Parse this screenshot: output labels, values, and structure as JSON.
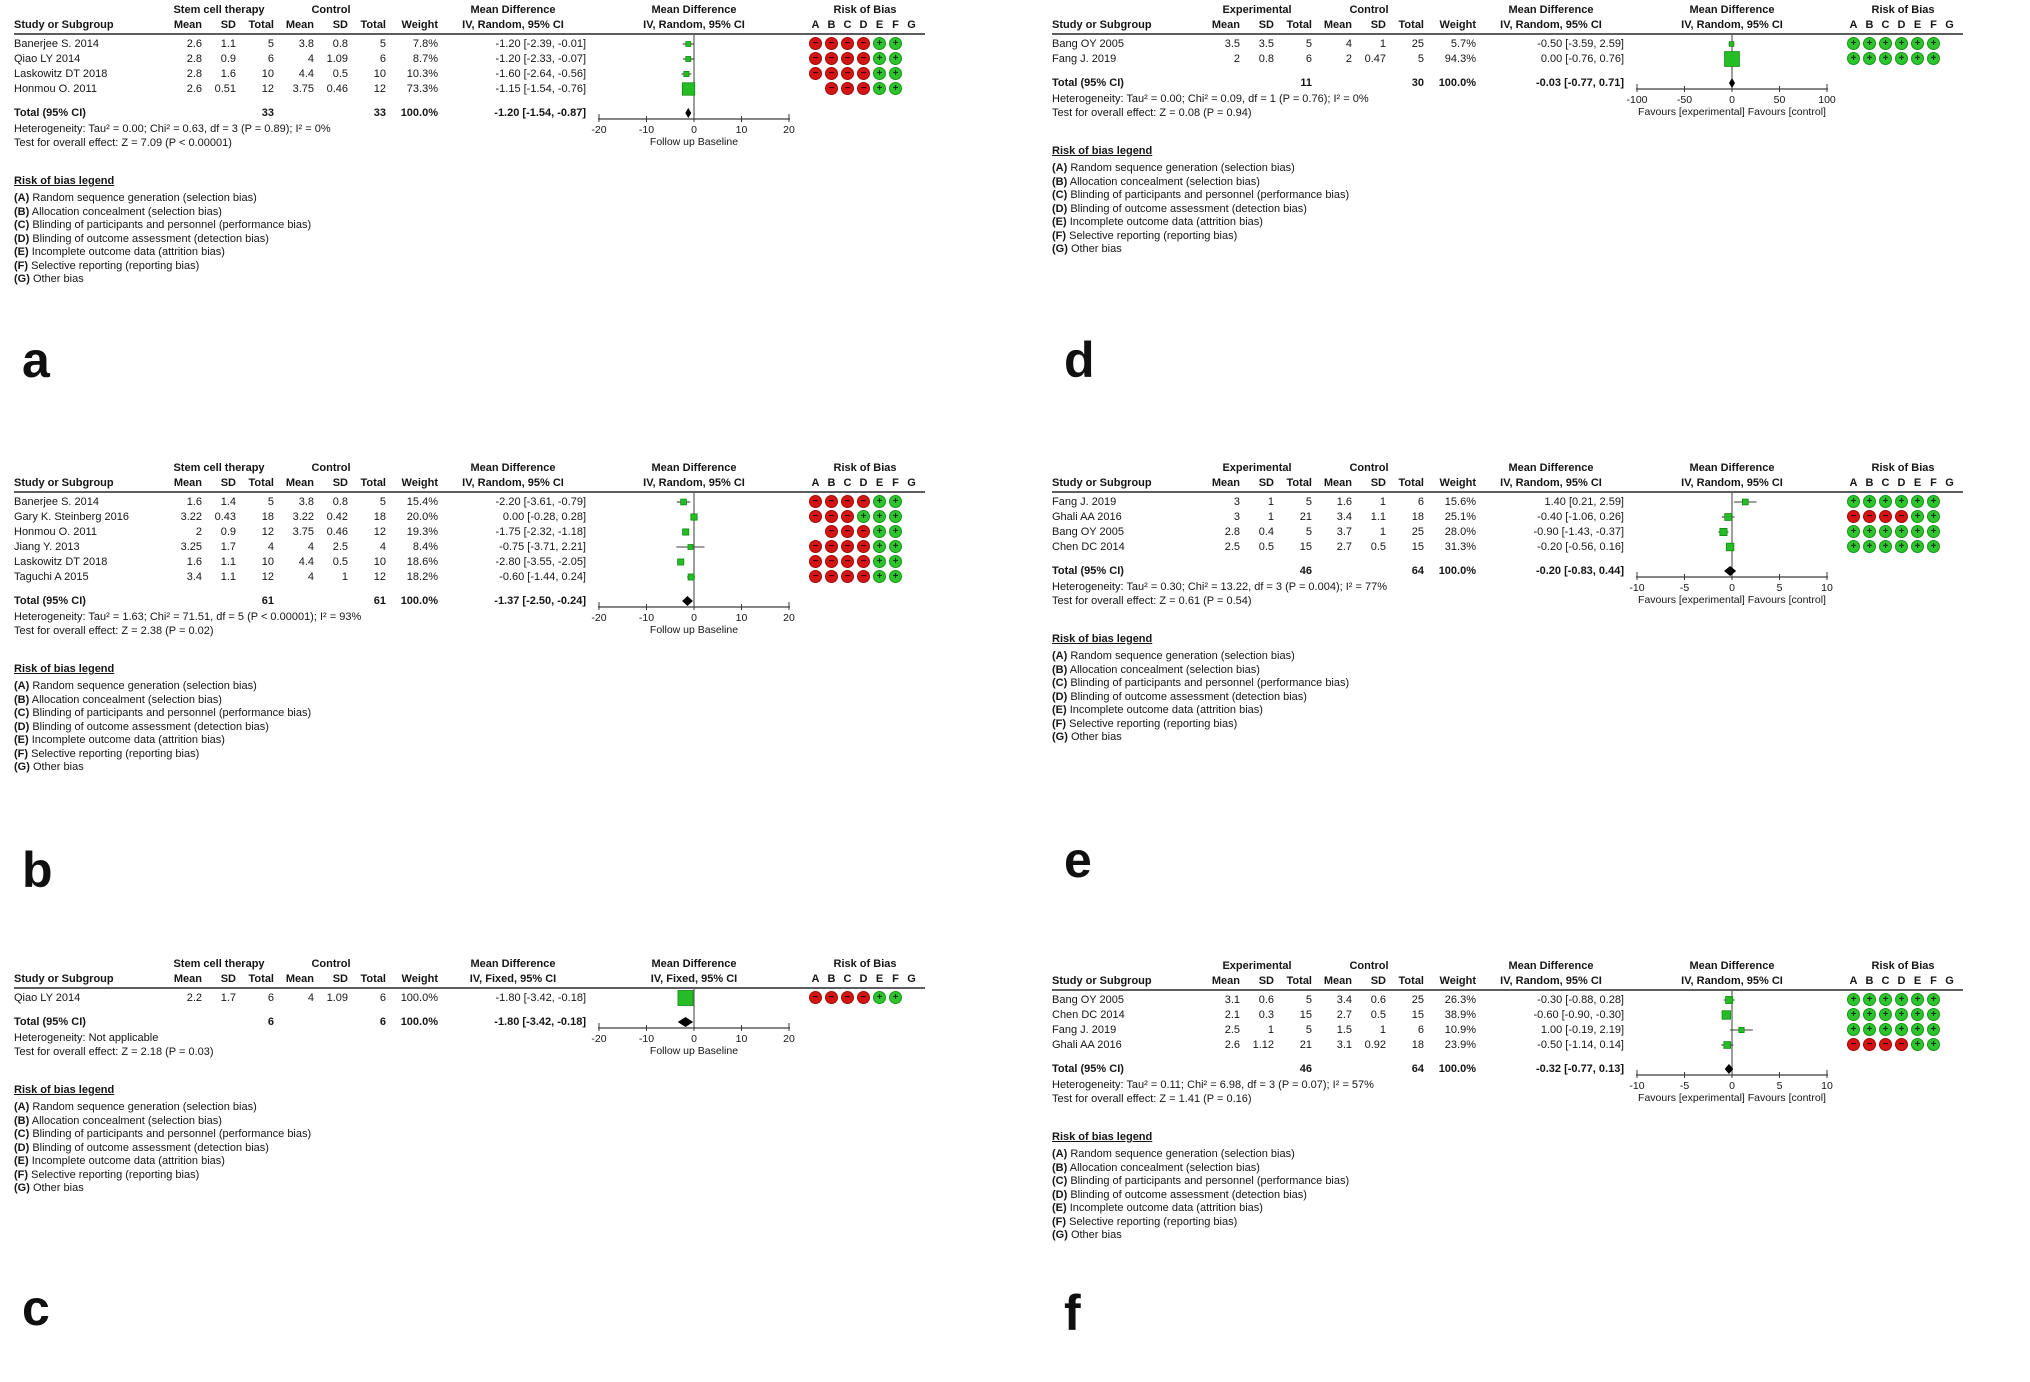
{
  "figure": {
    "rob_title": "Risk of Bias",
    "rob_columns": [
      "A",
      "B",
      "C",
      "D",
      "E",
      "F",
      "G"
    ],
    "rob_legend_title": "Risk of bias legend",
    "rob_legend": [
      {
        "key": "(A)",
        "text": "Random sequence generation (selection bias)"
      },
      {
        "key": "(B)",
        "text": "Allocation concealment (selection bias)"
      },
      {
        "key": "(C)",
        "text": "Blinding of participants and personnel (performance bias)"
      },
      {
        "key": "(D)",
        "text": "Blinding of outcome assessment (detection bias)"
      },
      {
        "key": "(E)",
        "text": "Incomplete outcome data (attrition bias)"
      },
      {
        "key": "(F)",
        "text": "Selective reporting (reporting bias)"
      },
      {
        "key": "(G)",
        "text": "Other bias"
      }
    ],
    "colors": {
      "risk_low_green": "#2ec42e",
      "risk_high_red": "#d51414",
      "marker_green": "#25bd25",
      "diamond_black": "#000000",
      "line_gray": "#3c3c3c"
    }
  },
  "chart_data": {
    "type": "forest",
    "panels": [
      {
        "label": "a",
        "group1": "Stem cell therapy",
        "group2": "Control",
        "effect_title": "Mean Difference",
        "effect_sub": "IV, Random, 95% CI",
        "columns": {
          "study": "Study or Subgroup",
          "mean": "Mean",
          "sd": "SD",
          "total": "Total",
          "weight": "Weight"
        },
        "rows": [
          {
            "study": "Banerjee S. 2014",
            "mean1": "2.6",
            "sd1": "1.1",
            "n1": "5",
            "mean2": "3.8",
            "sd2": "0.8",
            "n2": "5",
            "weight": "7.8%",
            "weight_value": 7.8,
            "ci_text": "-1.20 [-2.39, -0.01]",
            "est": -1.2,
            "lo": -2.39,
            "hi": -0.01,
            "rob": [
              "-",
              "-",
              "-",
              "-",
              "+",
              "+",
              ""
            ]
          },
          {
            "study": "Qiao LY 2014",
            "mean1": "2.8",
            "sd1": "0.9",
            "n1": "6",
            "mean2": "4",
            "sd2": "1.09",
            "n2": "6",
            "weight": "8.7%",
            "weight_value": 8.7,
            "ci_text": "-1.20 [-2.33, -0.07]",
            "est": -1.2,
            "lo": -2.33,
            "hi": -0.07,
            "rob": [
              "-",
              "-",
              "-",
              "-",
              "+",
              "+",
              ""
            ]
          },
          {
            "study": "Laskowitz DT 2018",
            "mean1": "2.8",
            "sd1": "1.6",
            "n1": "10",
            "mean2": "4.4",
            "sd2": "0.5",
            "n2": "10",
            "weight": "10.3%",
            "weight_value": 10.3,
            "ci_text": "-1.60 [-2.64, -0.56]",
            "est": -1.6,
            "lo": -2.64,
            "hi": -0.56,
            "rob": [
              "-",
              "-",
              "-",
              "-",
              "+",
              "+",
              ""
            ]
          },
          {
            "study": "Honmou O. 2011",
            "mean1": "2.6",
            "sd1": "0.51",
            "n1": "12",
            "mean2": "3.75",
            "sd2": "0.46",
            "n2": "12",
            "weight": "73.3%",
            "weight_value": 73.3,
            "ci_text": "-1.15 [-1.54, -0.76]",
            "est": -1.15,
            "lo": -1.54,
            "hi": -0.76,
            "rob": [
              "",
              "-",
              "-",
              "-",
              "+",
              "+",
              ""
            ]
          }
        ],
        "total": {
          "label": "Total (95% CI)",
          "n1": "33",
          "n2": "33",
          "weight": "100.0%",
          "ci_text": "-1.20 [-1.54, -0.87]",
          "est": -1.2,
          "lo": -1.54,
          "hi": -0.87
        },
        "heterogeneity": "Heterogeneity: Tau² = 0.00; Chi² = 0.63, df = 3 (P = 0.89); I² = 0%",
        "overall_test": "Test for overall effect: Z = 7.09 (P < 0.00001)",
        "axis": {
          "min": -20,
          "max": 20,
          "ticks": [
            -20,
            -10,
            0,
            10,
            20
          ],
          "footer": "Follow up  Baseline"
        }
      },
      {
        "label": "b",
        "group1": "Stem cell therapy",
        "group2": "Control",
        "effect_title": "Mean Difference",
        "effect_sub": "IV, Random, 95% CI",
        "columns": {
          "study": "Study or Subgroup",
          "mean": "Mean",
          "sd": "SD",
          "total": "Total",
          "weight": "Weight"
        },
        "rows": [
          {
            "study": "Banerjee S. 2014",
            "mean1": "1.6",
            "sd1": "1.4",
            "n1": "5",
            "mean2": "3.8",
            "sd2": "0.8",
            "n2": "5",
            "weight": "15.4%",
            "weight_value": 15.4,
            "ci_text": "-2.20 [-3.61, -0.79]",
            "est": -2.2,
            "lo": -3.61,
            "hi": -0.79,
            "rob": [
              "-",
              "-",
              "-",
              "-",
              "+",
              "+",
              ""
            ]
          },
          {
            "study": "Gary K. Steinberg 2016",
            "mean1": "3.22",
            "sd1": "0.43",
            "n1": "18",
            "mean2": "3.22",
            "sd2": "0.42",
            "n2": "18",
            "weight": "20.0%",
            "weight_value": 20.0,
            "ci_text": "0.00 [-0.28, 0.28]",
            "est": 0.0,
            "lo": -0.28,
            "hi": 0.28,
            "rob": [
              "-",
              "-",
              "-",
              "+",
              "+",
              "+",
              ""
            ]
          },
          {
            "study": "Honmou O. 2011",
            "mean1": "2",
            "sd1": "0.9",
            "n1": "12",
            "mean2": "3.75",
            "sd2": "0.46",
            "n2": "12",
            "weight": "19.3%",
            "weight_value": 19.3,
            "ci_text": "-1.75 [-2.32, -1.18]",
            "est": -1.75,
            "lo": -2.32,
            "hi": -1.18,
            "rob": [
              "",
              "-",
              "-",
              "-",
              "+",
              "+",
              ""
            ]
          },
          {
            "study": "Jiang Y. 2013",
            "mean1": "3.25",
            "sd1": "1.7",
            "n1": "4",
            "mean2": "4",
            "sd2": "2.5",
            "n2": "4",
            "weight": "8.4%",
            "weight_value": 8.4,
            "ci_text": "-0.75 [-3.71, 2.21]",
            "est": -0.75,
            "lo": -3.71,
            "hi": 2.21,
            "rob": [
              "-",
              "-",
              "-",
              "-",
              "+",
              "+",
              ""
            ]
          },
          {
            "study": "Laskowitz DT 2018",
            "mean1": "1.6",
            "sd1": "1.1",
            "n1": "10",
            "mean2": "4.4",
            "sd2": "0.5",
            "n2": "10",
            "weight": "18.6%",
            "weight_value": 18.6,
            "ci_text": "-2.80 [-3.55, -2.05]",
            "est": -2.8,
            "lo": -3.55,
            "hi": -2.05,
            "rob": [
              "-",
              "-",
              "-",
              "-",
              "+",
              "+",
              ""
            ]
          },
          {
            "study": "Taguchi A 2015",
            "mean1": "3.4",
            "sd1": "1.1",
            "n1": "12",
            "mean2": "4",
            "sd2": "1",
            "n2": "12",
            "weight": "18.2%",
            "weight_value": 18.2,
            "ci_text": "-0.60 [-1.44, 0.24]",
            "est": -0.6,
            "lo": -1.44,
            "hi": 0.24,
            "rob": [
              "-",
              "-",
              "-",
              "-",
              "+",
              "+",
              ""
            ]
          }
        ],
        "total": {
          "label": "Total (95% CI)",
          "n1": "61",
          "n2": "61",
          "weight": "100.0%",
          "ci_text": "-1.37 [-2.50, -0.24]",
          "est": -1.37,
          "lo": -2.5,
          "hi": -0.24
        },
        "heterogeneity": "Heterogeneity: Tau² = 1.63; Chi² = 71.51, df = 5 (P < 0.00001); I² = 93%",
        "overall_test": "Test for overall effect: Z = 2.38 (P = 0.02)",
        "axis": {
          "min": -20,
          "max": 20,
          "ticks": [
            -20,
            -10,
            0,
            10,
            20
          ],
          "footer": "Follow up  Baseline"
        }
      },
      {
        "label": "c",
        "group1": "Stem cell therapy",
        "group2": "Control",
        "effect_title": "Mean Difference",
        "effect_sub": "IV, Fixed, 95% CI",
        "columns": {
          "study": "Study or Subgroup",
          "mean": "Mean",
          "sd": "SD",
          "total": "Total",
          "weight": "Weight"
        },
        "rows": [
          {
            "study": "Qiao LY 2014",
            "mean1": "2.2",
            "sd1": "1.7",
            "n1": "6",
            "mean2": "4",
            "sd2": "1.09",
            "n2": "6",
            "weight": "100.0%",
            "weight_value": 100.0,
            "ci_text": "-1.80 [-3.42, -0.18]",
            "est": -1.8,
            "lo": -3.42,
            "hi": -0.18,
            "rob": [
              "-",
              "-",
              "-",
              "-",
              "+",
              "+",
              ""
            ]
          }
        ],
        "total": {
          "label": "Total (95% CI)",
          "n1": "6",
          "n2": "6",
          "weight": "100.0%",
          "ci_text": "-1.80 [-3.42, -0.18]",
          "est": -1.8,
          "lo": -3.42,
          "hi": -0.18
        },
        "heterogeneity": "Heterogeneity: Not applicable",
        "overall_test": "Test for overall effect: Z = 2.18 (P = 0.03)",
        "axis": {
          "min": -20,
          "max": 20,
          "ticks": [
            -20,
            -10,
            0,
            10,
            20
          ],
          "footer": "Follow up  Baseline"
        }
      },
      {
        "label": "d",
        "group1": "Experimental",
        "group2": "Control",
        "effect_title": "Mean Difference",
        "effect_sub": "IV, Random, 95% CI",
        "columns": {
          "study": "Study or Subgroup",
          "mean": "Mean",
          "sd": "SD",
          "total": "Total",
          "weight": "Weight"
        },
        "rows": [
          {
            "study": "Bang OY 2005",
            "mean1": "3.5",
            "sd1": "3.5",
            "n1": "5",
            "mean2": "4",
            "sd2": "1",
            "n2": "25",
            "weight": "5.7%",
            "weight_value": 5.7,
            "ci_text": "-0.50 [-3.59, 2.59]",
            "est": -0.5,
            "lo": -3.59,
            "hi": 2.59,
            "rob": [
              "+",
              "+",
              "+",
              "+",
              "+",
              "+",
              ""
            ]
          },
          {
            "study": "Fang J. 2019",
            "mean1": "2",
            "sd1": "0.8",
            "n1": "6",
            "mean2": "2",
            "sd2": "0.47",
            "n2": "5",
            "weight": "94.3%",
            "weight_value": 94.3,
            "ci_text": "0.00 [-0.76, 0.76]",
            "est": 0.0,
            "lo": -0.76,
            "hi": 0.76,
            "rob": [
              "+",
              "+",
              "+",
              "+",
              "+",
              "+",
              ""
            ]
          }
        ],
        "total": {
          "label": "Total (95% CI)",
          "n1": "11",
          "n2": "30",
          "weight": "100.0%",
          "ci_text": "-0.03 [-0.77, 0.71]",
          "est": -0.03,
          "lo": -0.77,
          "hi": 0.71
        },
        "heterogeneity": "Heterogeneity: Tau² = 0.00; Chi² = 0.09, df = 1 (P = 0.76); I² = 0%",
        "overall_test": "Test for overall effect: Z = 0.08 (P = 0.94)",
        "axis": {
          "min": -100,
          "max": 100,
          "ticks": [
            -100,
            -50,
            0,
            50,
            100
          ],
          "footer": "Favours [experimental]  Favours [control]"
        }
      },
      {
        "label": "e",
        "group1": "Experimental",
        "group2": "Control",
        "effect_title": "Mean Difference",
        "effect_sub": "IV, Random, 95% CI",
        "columns": {
          "study": "Study or Subgroup",
          "mean": "Mean",
          "sd": "SD",
          "total": "Total",
          "weight": "Weight"
        },
        "rows": [
          {
            "study": "Fang J. 2019",
            "mean1": "3",
            "sd1": "1",
            "n1": "5",
            "mean2": "1.6",
            "sd2": "1",
            "n2": "6",
            "weight": "15.6%",
            "weight_value": 15.6,
            "ci_text": "1.40 [0.21, 2.59]",
            "est": 1.4,
            "lo": 0.21,
            "hi": 2.59,
            "rob": [
              "+",
              "+",
              "+",
              "+",
              "+",
              "+",
              ""
            ]
          },
          {
            "study": "Ghali AA 2016",
            "mean1": "3",
            "sd1": "1",
            "n1": "21",
            "mean2": "3.4",
            "sd2": "1.1",
            "n2": "18",
            "weight": "25.1%",
            "weight_value": 25.1,
            "ci_text": "-0.40 [-1.06, 0.26]",
            "est": -0.4,
            "lo": -1.06,
            "hi": 0.26,
            "rob": [
              "-",
              "-",
              "-",
              "-",
              "+",
              "+",
              ""
            ]
          },
          {
            "study": "Bang OY 2005",
            "mean1": "2.8",
            "sd1": "0.4",
            "n1": "5",
            "mean2": "3.7",
            "sd2": "1",
            "n2": "25",
            "weight": "28.0%",
            "weight_value": 28.0,
            "ci_text": "-0.90 [-1.43, -0.37]",
            "est": -0.9,
            "lo": -1.43,
            "hi": -0.37,
            "rob": [
              "+",
              "+",
              "+",
              "+",
              "+",
              "+",
              ""
            ]
          },
          {
            "study": "Chen DC 2014",
            "mean1": "2.5",
            "sd1": "0.5",
            "n1": "15",
            "mean2": "2.7",
            "sd2": "0.5",
            "n2": "15",
            "weight": "31.3%",
            "weight_value": 31.3,
            "ci_text": "-0.20 [-0.56, 0.16]",
            "est": -0.2,
            "lo": -0.56,
            "hi": 0.16,
            "rob": [
              "+",
              "+",
              "+",
              "+",
              "+",
              "+",
              ""
            ]
          }
        ],
        "total": {
          "label": "Total (95% CI)",
          "n1": "46",
          "n2": "64",
          "weight": "100.0%",
          "ci_text": "-0.20 [-0.83, 0.44]",
          "est": -0.2,
          "lo": -0.83,
          "hi": 0.44
        },
        "heterogeneity": "Heterogeneity: Tau² = 0.30; Chi² = 13.22, df = 3 (P = 0.004); I² = 77%",
        "overall_test": "Test for overall effect: Z = 0.61 (P = 0.54)",
        "axis": {
          "min": -10,
          "max": 10,
          "ticks": [
            -10,
            -5,
            0,
            5,
            10
          ],
          "footer": "Favours [experimental]  Favours [control]"
        }
      },
      {
        "label": "f",
        "group1": "Experimental",
        "group2": "Control",
        "effect_title": "Mean Difference",
        "effect_sub": "IV, Random, 95% CI",
        "columns": {
          "study": "Study or Subgroup",
          "mean": "Mean",
          "sd": "SD",
          "total": "Total",
          "weight": "Weight"
        },
        "rows": [
          {
            "study": "Bang OY 2005",
            "mean1": "3.1",
            "sd1": "0.6",
            "n1": "5",
            "mean2": "3.4",
            "sd2": "0.6",
            "n2": "25",
            "weight": "26.3%",
            "weight_value": 26.3,
            "ci_text": "-0.30 [-0.88, 0.28]",
            "est": -0.3,
            "lo": -0.88,
            "hi": 0.28,
            "rob": [
              "+",
              "+",
              "+",
              "+",
              "+",
              "+",
              ""
            ]
          },
          {
            "study": "Chen DC 2014",
            "mean1": "2.1",
            "sd1": "0.3",
            "n1": "15",
            "mean2": "2.7",
            "sd2": "0.5",
            "n2": "15",
            "weight": "38.9%",
            "weight_value": 38.9,
            "ci_text": "-0.60 [-0.90, -0.30]",
            "est": -0.6,
            "lo": -0.9,
            "hi": -0.3,
            "rob": [
              "+",
              "+",
              "+",
              "+",
              "+",
              "+",
              ""
            ]
          },
          {
            "study": "Fang J. 2019",
            "mean1": "2.5",
            "sd1": "1",
            "n1": "5",
            "mean2": "1.5",
            "sd2": "1",
            "n2": "6",
            "weight": "10.9%",
            "weight_value": 10.9,
            "ci_text": "1.00 [-0.19, 2.19]",
            "est": 1.0,
            "lo": -0.19,
            "hi": 2.19,
            "rob": [
              "+",
              "+",
              "+",
              "+",
              "+",
              "+",
              ""
            ]
          },
          {
            "study": "Ghali AA 2016",
            "mean1": "2.6",
            "sd1": "1.12",
            "n1": "21",
            "mean2": "3.1",
            "sd2": "0.92",
            "n2": "18",
            "weight": "23.9%",
            "weight_value": 23.9,
            "ci_text": "-0.50 [-1.14, 0.14]",
            "est": -0.5,
            "lo": -1.14,
            "hi": 0.14,
            "rob": [
              "-",
              "-",
              "-",
              "-",
              "+",
              "+",
              ""
            ]
          }
        ],
        "total": {
          "label": "Total (95% CI)",
          "n1": "46",
          "n2": "64",
          "weight": "100.0%",
          "ci_text": "-0.32 [-0.77, 0.13]",
          "est": -0.32,
          "lo": -0.77,
          "hi": 0.13
        },
        "heterogeneity": "Heterogeneity: Tau² = 0.11; Chi² = 6.98, df = 3 (P = 0.07); I² = 57%",
        "overall_test": "Test for overall effect: Z = 1.41 (P = 0.16)",
        "axis": {
          "min": -10,
          "max": 10,
          "ticks": [
            -10,
            -5,
            0,
            5,
            10
          ],
          "footer": "Favours [experimental]  Favours [control]"
        }
      }
    ]
  }
}
